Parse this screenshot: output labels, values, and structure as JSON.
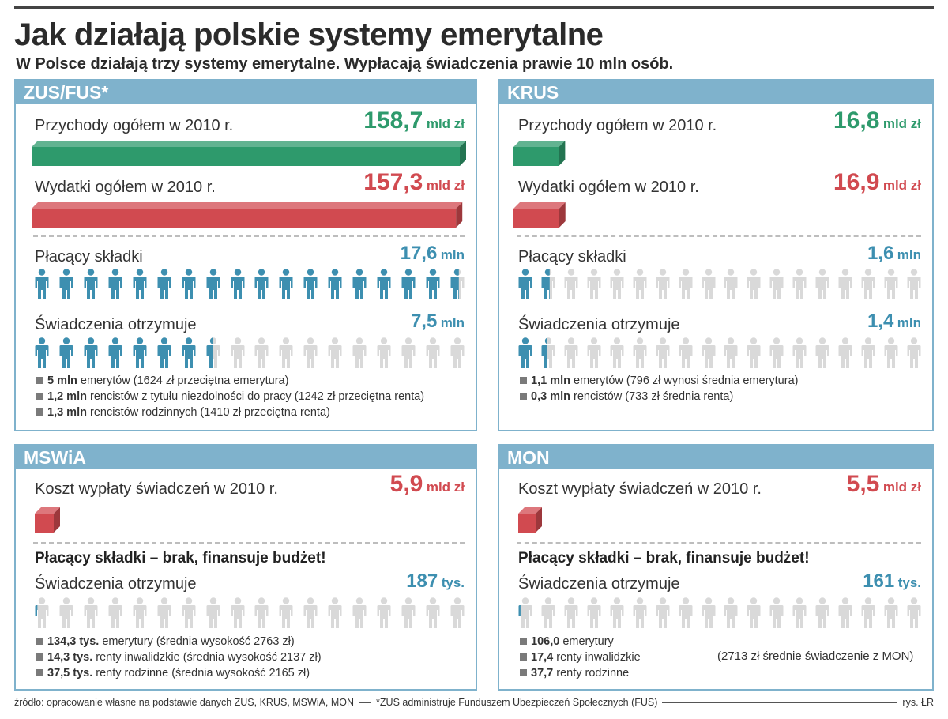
{
  "title": "Jak działają polskie systemy emerytalne",
  "subtitle": "W Polsce działają trzy systemy emerytalne. Wypłacają świadczenia prawie 10 mln osób.",
  "colors": {
    "header": "#7fb2cc",
    "green": "#2e9a6c",
    "red": "#d14a50",
    "blue_icon": "#3d8fb0",
    "grey_icon": "#d9d9d9"
  },
  "icon_name": "person-icon",
  "chart_data": [
    {
      "id": "zus",
      "type": "bar",
      "panel_title": "ZUS/FUS*",
      "scale_max": 158.7,
      "revenue": {
        "label": "Przychody ogółem w 2010 r.",
        "value_text": "158,7",
        "unit": "mld zł",
        "value": 158.7
      },
      "expense": {
        "label": "Wydatki ogółem w 2010 r.",
        "value_text": "157,3",
        "unit": "mld zł",
        "value": 157.3
      },
      "payers": {
        "label": "Płacący składki",
        "value_text": "17,6",
        "unit": "mln",
        "icons_total": 18,
        "icons_filled": 17.6
      },
      "beneficiaries": {
        "label": "Świadczenia otrzymuje",
        "value_text": "7,5",
        "unit": "mln",
        "icons_total": 18,
        "icons_filled": 7.5
      },
      "details": [
        {
          "value": "5 mln",
          "text": "emerytów (1624 zł przeciętna emerytura)"
        },
        {
          "value": "1,2 mln",
          "text": "rencistów z tytułu niezdolności do pracy (1242 zł przeciętna renta)"
        },
        {
          "value": "1,3 mln",
          "text": "rencistów rodzinnych (1410 zł przeciętna renta)"
        }
      ]
    },
    {
      "id": "krus",
      "type": "bar",
      "panel_title": "KRUS",
      "scale_max": 158.7,
      "revenue": {
        "label": "Przychody ogółem w 2010 r.",
        "value_text": "16,8",
        "unit": "mld zł",
        "value": 16.8
      },
      "expense": {
        "label": "Wydatki ogółem w 2010 r.",
        "value_text": "16,9",
        "unit": "mld zł",
        "value": 16.9
      },
      "payers": {
        "label": "Płacący składki",
        "value_text": "1,6",
        "unit": "mln",
        "icons_total": 18,
        "icons_filled": 1.6
      },
      "beneficiaries": {
        "label": "Świadczenia otrzymuje",
        "value_text": "1,4",
        "unit": "mln",
        "icons_total": 18,
        "icons_filled": 1.4
      },
      "details": [
        {
          "value": "1,1 mln",
          "text": "emerytów (796 zł wynosi średnia emerytura)"
        },
        {
          "value": "0,3 mln",
          "text": "rencistów (733 zł średnia renta)"
        }
      ]
    },
    {
      "id": "mswia",
      "type": "bar",
      "panel_title": "MSWiA",
      "scale_max": 158.7,
      "cost": {
        "label": "Koszt wypłaty świadczeń w 2010 r.",
        "value_text": "5,9",
        "unit": "mld zł",
        "value": 5.9
      },
      "note": "Płacący składki – brak, finansuje budżet!",
      "beneficiaries": {
        "label": "Świadczenia otrzymuje",
        "value_text": "187",
        "unit": "tys.",
        "icons_total": 18,
        "icons_filled": 0.187
      },
      "details": [
        {
          "value": "134,3 tys.",
          "text": "emerytury (średnia wysokość 2763 zł)"
        },
        {
          "value": "14,3 tys.",
          "text": "renty inwalidzkie (średnia wysokość 2137 zł)"
        },
        {
          "value": "37,5 tys.",
          "text": "renty rodzinne (średnia wysokość 2165 zł)"
        }
      ]
    },
    {
      "id": "mon",
      "type": "bar",
      "panel_title": "MON",
      "scale_max": 158.7,
      "cost": {
        "label": "Koszt wypłaty świadczeń w 2010 r.",
        "value_text": "5,5",
        "unit": "mld zł",
        "value": 5.5
      },
      "note": "Płacący składki – brak, finansuje budżet!",
      "beneficiaries": {
        "label": "Świadczenia otrzymuje",
        "value_text": "161",
        "unit": "tys.",
        "icons_total": 18,
        "icons_filled": 0.161
      },
      "details": [
        {
          "value": "106,0",
          "text": "emerytury"
        },
        {
          "value": "17,4",
          "text": "renty inwalidzkie"
        },
        {
          "value": "37,7",
          "text": "renty rodzinne"
        }
      ],
      "side_note": "(2713 zł średnie świadczenie z MON)"
    }
  ],
  "footer": {
    "source": "źródło: opracowanie własne na podstawie danych ZUS, KRUS, MSWiA, MON",
    "footnote": "*ZUS administruje Funduszem Ubezpieczeń Społecznych (FUS)",
    "credit": "rys. ŁR"
  }
}
